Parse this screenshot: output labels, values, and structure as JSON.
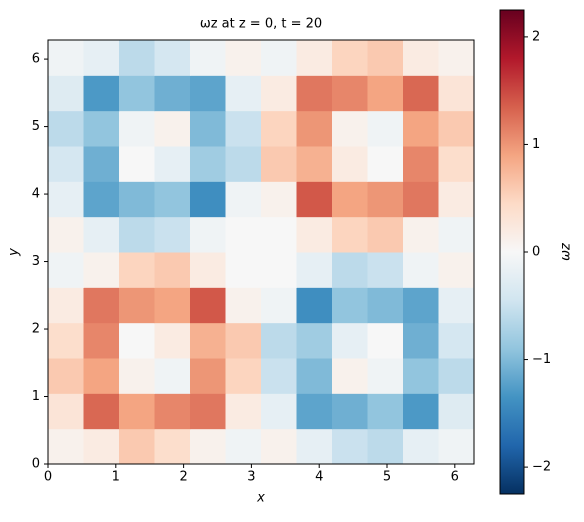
{
  "chart_data": {
    "type": "heatmap",
    "title": "ωz at z = 0, t = 20",
    "x_label": "x",
    "y_label": "y",
    "colorbar_label": "ωz",
    "colormap": "RdBu_r",
    "xlim": [
      0,
      6.283
    ],
    "ylim": [
      0,
      6.283
    ],
    "xticks": [
      0,
      1,
      2,
      3,
      4,
      5,
      6
    ],
    "yticks": [
      0,
      1,
      2,
      3,
      4,
      5,
      6
    ],
    "clim": [
      -2.25,
      2.25
    ],
    "cticks": [
      {
        "value": -2,
        "label": "−2"
      },
      {
        "value": -1,
        "label": "−1"
      },
      0,
      1,
      2
    ],
    "z": [
      [
        0.1,
        0.2,
        0.6,
        0.4,
        0.1,
        -0.1,
        0.1,
        -0.2,
        -0.5,
        -0.6,
        -0.2,
        -0.1
      ],
      [
        0.3,
        1.3,
        0.9,
        1.1,
        1.2,
        0.2,
        -0.2,
        -1.2,
        -1.1,
        -0.9,
        -1.3,
        -0.3
      ],
      [
        0.6,
        0.9,
        0.1,
        -0.1,
        1.0,
        0.5,
        -0.5,
        -1.0,
        0.1,
        -0.1,
        -0.9,
        -0.6
      ],
      [
        0.4,
        1.1,
        0.0,
        0.2,
        0.8,
        0.6,
        -0.6,
        -0.8,
        -0.2,
        0.0,
        -1.1,
        -0.4
      ],
      [
        0.2,
        1.2,
        1.0,
        0.9,
        1.4,
        0.1,
        -0.1,
        -1.4,
        -0.9,
        -1.0,
        -1.2,
        -0.2
      ],
      [
        -0.1,
        0.1,
        0.5,
        0.6,
        0.2,
        0.0,
        0.0,
        -0.2,
        -0.6,
        -0.5,
        -0.1,
        0.1
      ],
      [
        0.1,
        -0.2,
        -0.6,
        -0.5,
        -0.1,
        0.0,
        0.0,
        0.2,
        0.5,
        0.6,
        0.1,
        -0.1
      ],
      [
        -0.2,
        -1.2,
        -1.0,
        -0.9,
        -1.4,
        -0.1,
        0.1,
        1.4,
        0.9,
        1.0,
        1.2,
        0.2
      ],
      [
        -0.4,
        -1.1,
        0.0,
        -0.2,
        -0.8,
        -0.6,
        0.6,
        0.8,
        0.2,
        0.0,
        1.1,
        0.4
      ],
      [
        -0.6,
        -0.9,
        -0.1,
        0.1,
        -1.0,
        -0.5,
        0.5,
        1.0,
        0.1,
        -0.1,
        0.9,
        0.6
      ],
      [
        -0.3,
        -1.3,
        -0.9,
        -1.1,
        -1.2,
        -0.2,
        0.2,
        1.2,
        1.1,
        0.9,
        1.3,
        0.3
      ],
      [
        -0.1,
        -0.2,
        -0.6,
        -0.4,
        -0.1,
        0.1,
        -0.1,
        0.2,
        0.5,
        0.6,
        0.2,
        0.1
      ]
    ]
  }
}
